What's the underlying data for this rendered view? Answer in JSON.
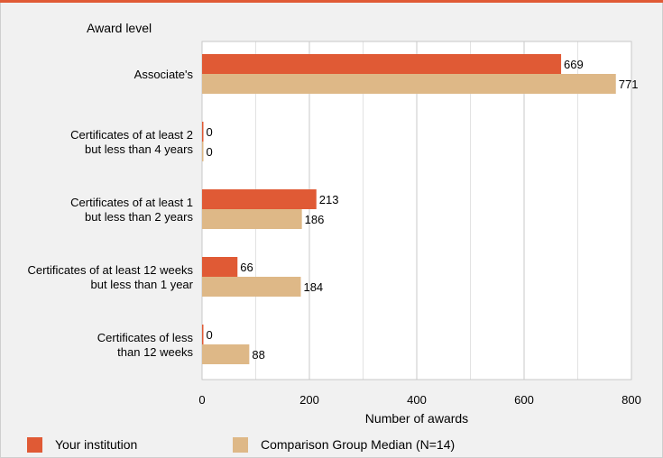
{
  "chart_data": {
    "type": "bar",
    "orientation": "horizontal",
    "category_axis_title": "Award level",
    "xlabel": "Number of awards",
    "categories": [
      [
        "Associate's"
      ],
      [
        "Certificates of at least 2",
        "but less than 4 years"
      ],
      [
        "Certificates of at least 1",
        "but  less than 2 years"
      ],
      [
        "Certificates of at least 12 weeks",
        "but less than 1 year"
      ],
      [
        "Certificates of less",
        "than 12 weeks"
      ]
    ],
    "series": [
      {
        "name": "Your institution",
        "color": "#e05a35",
        "values": [
          669,
          0,
          213,
          66,
          0
        ]
      },
      {
        "name": "Comparison Group Median (N=14)",
        "color": "#deb887",
        "values": [
          771,
          0,
          186,
          184,
          88
        ]
      }
    ],
    "xlim": [
      0,
      800
    ],
    "xticks": [
      0,
      200,
      400,
      600,
      800
    ],
    "grid": true,
    "legend_position": "bottom"
  }
}
